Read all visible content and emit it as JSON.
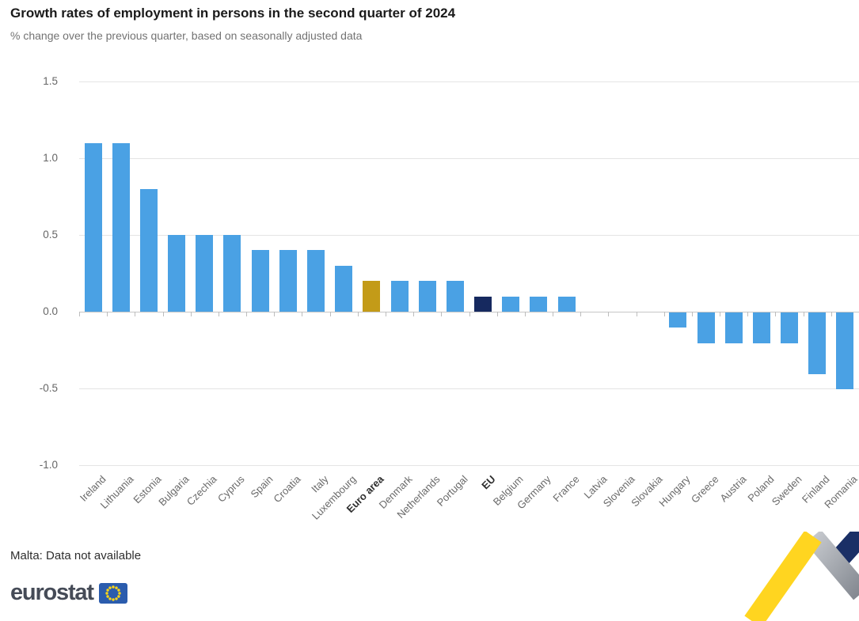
{
  "chart_data": {
    "type": "bar",
    "title": "Growth rates of employment in persons in the second quarter of 2024",
    "subtitle": "% change over the previous quarter, based on seasonally adjusted data",
    "xlabel": "",
    "ylabel": "",
    "ylim": [
      -1.0,
      1.5
    ],
    "yticks": [
      1.5,
      1.0,
      0.5,
      0.0,
      -0.5,
      -1.0
    ],
    "grid": true,
    "legend": "none",
    "categories": [
      "Ireland",
      "Lithuania",
      "Estonia",
      "Bulgaria",
      "Czechia",
      "Cyprus",
      "Spain",
      "Croatia",
      "Italy",
      "Luxembourg",
      "Euro area",
      "Denmark",
      "Netherlands",
      "Portugal",
      "EU",
      "Belgium",
      "Germany",
      "France",
      "Latvia",
      "Slovenia",
      "Slovakia",
      "Hungary",
      "Greece",
      "Austria",
      "Poland",
      "Sweden",
      "Finland",
      "Romania"
    ],
    "values": [
      1.1,
      1.1,
      0.8,
      0.5,
      0.5,
      0.5,
      0.4,
      0.4,
      0.4,
      0.3,
      0.2,
      0.2,
      0.2,
      0.2,
      0.1,
      0.1,
      0.1,
      0.1,
      0.0,
      0.0,
      0.0,
      -0.1,
      -0.2,
      -0.2,
      -0.2,
      -0.2,
      -0.4,
      -0.5
    ],
    "bold_categories": [
      "Euro area",
      "EU"
    ],
    "bar_colors": {
      "default": "#4aa1e4",
      "Euro area": "#c39b18",
      "EU": "#16295f"
    }
  },
  "footer": {
    "note": "Malta: Data not available",
    "logo_text": "eurostat"
  },
  "colors": {
    "bar_default": "#4aa1e4",
    "bar_euro_area": "#c39b18",
    "bar_eu": "#16295f",
    "ribbon_yellow": "#ffd520",
    "ribbon_gray_light": "#c6c9ce",
    "ribbon_gray_dark": "#82878f",
    "ribbon_navy": "#1a2f66",
    "flag_blue": "#2b5cad",
    "star_yellow": "#ffd617"
  }
}
